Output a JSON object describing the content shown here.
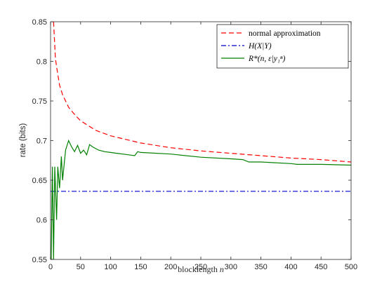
{
  "chart_data": {
    "type": "line",
    "title": "",
    "xlabel": "blocklength",
    "xlabel_var": "n",
    "ylabel": "rate (bits)",
    "xlim": [
      0,
      500
    ],
    "ylim": [
      0.55,
      0.85
    ],
    "x_ticks": [
      0,
      50,
      100,
      150,
      200,
      250,
      300,
      350,
      400,
      450,
      500
    ],
    "y_ticks": [
      0.55,
      0.6,
      0.65,
      0.7,
      0.75,
      0.8,
      0.85
    ],
    "x_tick_labels": [
      "0",
      "50",
      "100",
      "150",
      "200",
      "250",
      "300",
      "350",
      "400",
      "450",
      "500"
    ],
    "y_tick_labels": [
      "0.55",
      "0.6",
      "0.65",
      "0.7",
      "0.75",
      "0.8",
      "0.85"
    ],
    "grid": false,
    "legend_position": "top-right",
    "series": [
      {
        "name": "normal approximation",
        "style": "dashed",
        "color": "#ff0000",
        "x": [
          5,
          8,
          10,
          15,
          20,
          30,
          40,
          50,
          75,
          100,
          150,
          200,
          250,
          300,
          350,
          400,
          450,
          500
        ],
        "y": [
          0.85,
          0.805,
          0.793,
          0.77,
          0.758,
          0.742,
          0.733,
          0.725,
          0.713,
          0.706,
          0.697,
          0.691,
          0.687,
          0.684,
          0.681,
          0.678,
          0.676,
          0.673
        ]
      },
      {
        "name": "H(X|Y)",
        "style": "dashdot",
        "color": "#0000cc",
        "x": [
          0,
          500
        ],
        "y": [
          0.636,
          0.636
        ]
      },
      {
        "name": "R*(n, ε|y₁ⁿ)",
        "style": "solid",
        "color": "#008000",
        "x": [
          1,
          3,
          5,
          7,
          10,
          12,
          15,
          18,
          20,
          25,
          30,
          35,
          40,
          45,
          50,
          55,
          60,
          65,
          70,
          80,
          90,
          100,
          110,
          120,
          130,
          140,
          145,
          150,
          200,
          250,
          300,
          320,
          330,
          350,
          400,
          410,
          450,
          500
        ],
        "y": [
          0.55,
          0.667,
          0.55,
          0.667,
          0.6,
          0.667,
          0.64,
          0.68,
          0.65,
          0.688,
          0.7,
          0.692,
          0.686,
          0.694,
          0.684,
          0.688,
          0.682,
          0.695,
          0.692,
          0.688,
          0.686,
          0.685,
          0.684,
          0.683,
          0.682,
          0.681,
          0.686,
          0.685,
          0.683,
          0.679,
          0.677,
          0.676,
          0.673,
          0.673,
          0.671,
          0.67,
          0.67,
          0.669
        ]
      }
    ]
  }
}
